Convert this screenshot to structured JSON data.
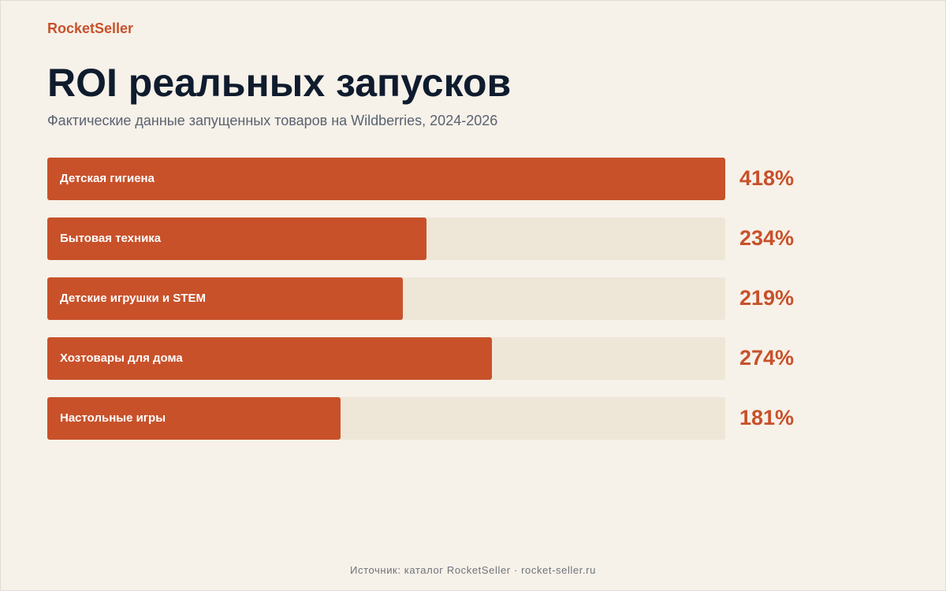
{
  "brand": "RocketSeller",
  "footer": "Источник: каталог RocketSeller · rocket-seller.ru",
  "colors": {
    "background": "#f6f1e9",
    "accent": "#c8512a",
    "track": "#eee6d7",
    "title": "#0f1c2e",
    "subtitle": "#5a6270"
  },
  "chart_data": {
    "type": "bar",
    "orientation": "horizontal",
    "title": "ROI реальных запусков",
    "subtitle": "Фактические данные запущенных товаров на Wildberries, 2024-2026",
    "categories": [
      "Детская гигиена",
      "Бытовая техника",
      "Детские игрушки и STEM",
      "Хозтовары для дома",
      "Настольные игры"
    ],
    "values": [
      418,
      234,
      219,
      274,
      181
    ],
    "value_labels": [
      "418%",
      "234%",
      "219%",
      "274%",
      "181%"
    ],
    "unit": "%",
    "xlim": [
      0,
      418
    ],
    "grid": false,
    "legend": "none"
  }
}
